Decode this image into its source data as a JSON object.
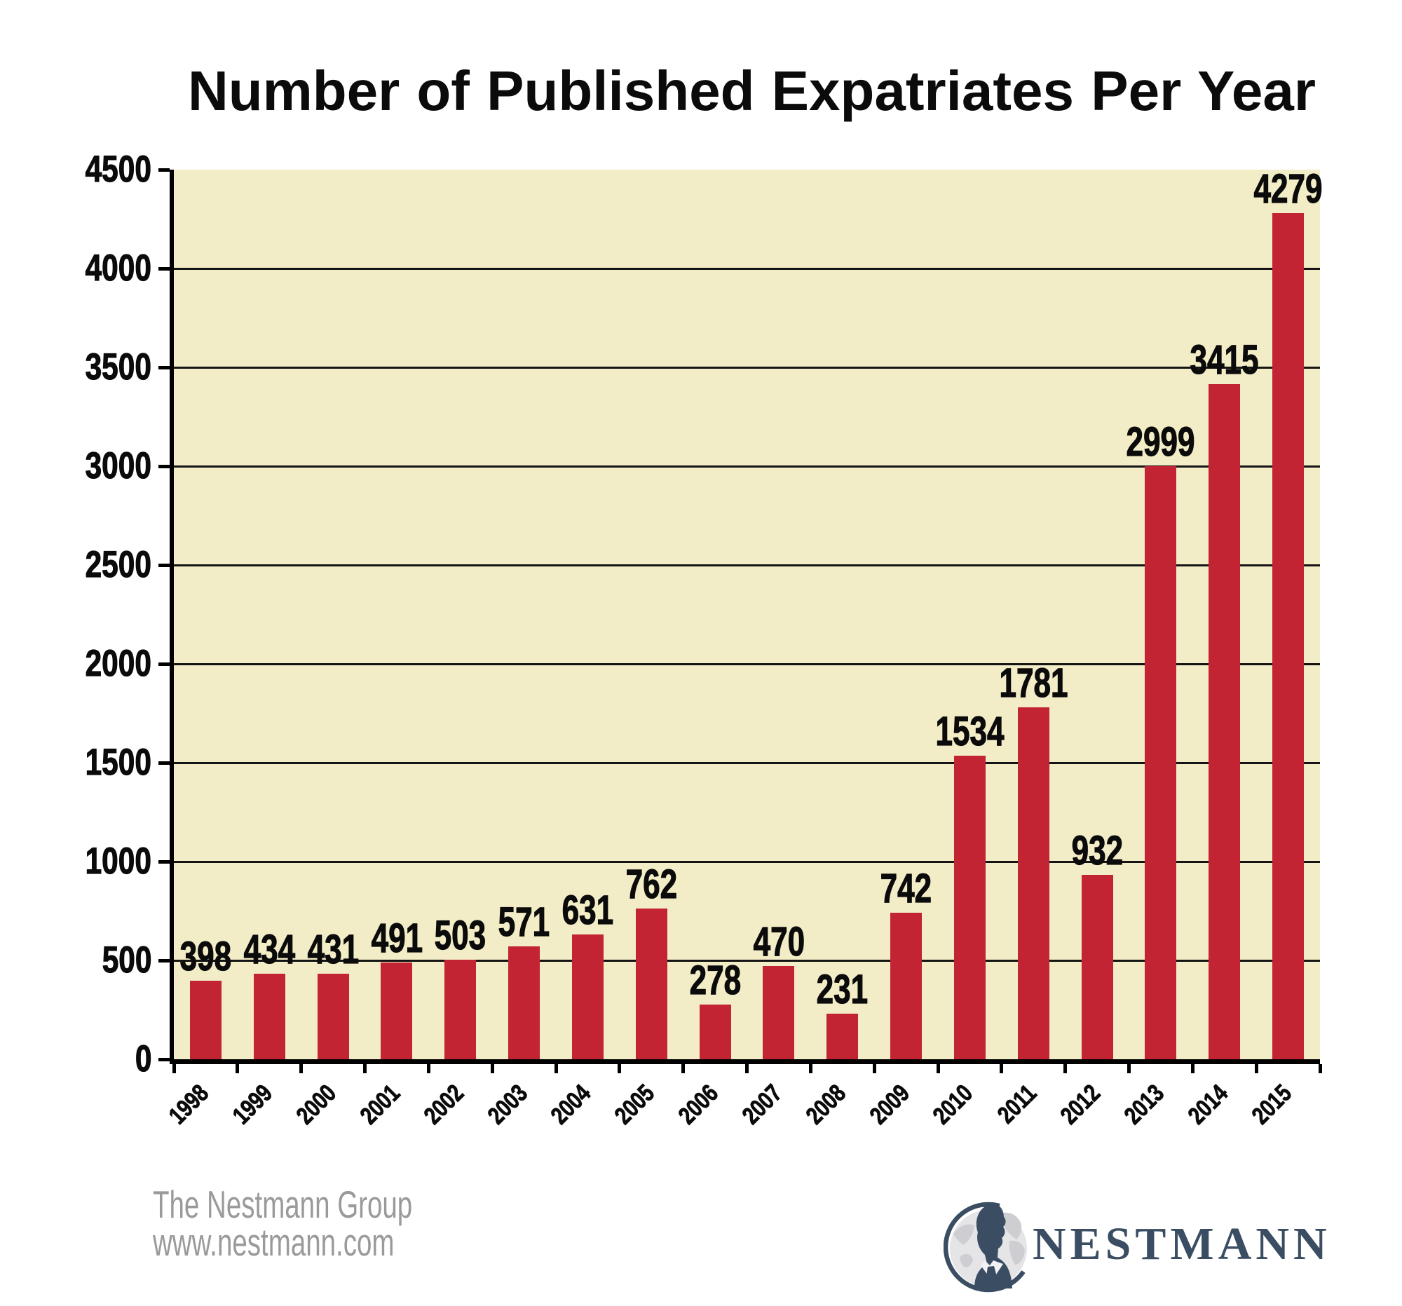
{
  "title": "Number of Published Expatriates Per Year",
  "chart_data": {
    "type": "bar",
    "title": "Number of Published Expatriates Per Year",
    "categories": [
      "1998",
      "1999",
      "2000",
      "2001",
      "2002",
      "2003",
      "2004",
      "2005",
      "2006",
      "2007",
      "2008",
      "2009",
      "2010",
      "2011",
      "2012",
      "2013",
      "2014",
      "2015"
    ],
    "values": [
      398,
      434,
      431,
      491,
      503,
      571,
      631,
      762,
      278,
      470,
      231,
      742,
      1534,
      1781,
      932,
      2999,
      3415,
      4279
    ],
    "xlabel": "",
    "ylabel": "",
    "ylim": [
      0,
      4500
    ],
    "ytick_step": 500,
    "ytick_labels": [
      "0",
      "500",
      "1000",
      "1500",
      "2000",
      "2500",
      "3000",
      "3500",
      "4000",
      "4500"
    ],
    "grid": true,
    "legend": false,
    "bar_color": "#c22433",
    "plot_bg": "#f3edc7",
    "axis_color": "#000000"
  },
  "footer": {
    "line1": "The Nestmann Group",
    "line2": "www.nestmann.com"
  },
  "logo": {
    "name": "NESTMANN",
    "color": "#3a4d63"
  }
}
